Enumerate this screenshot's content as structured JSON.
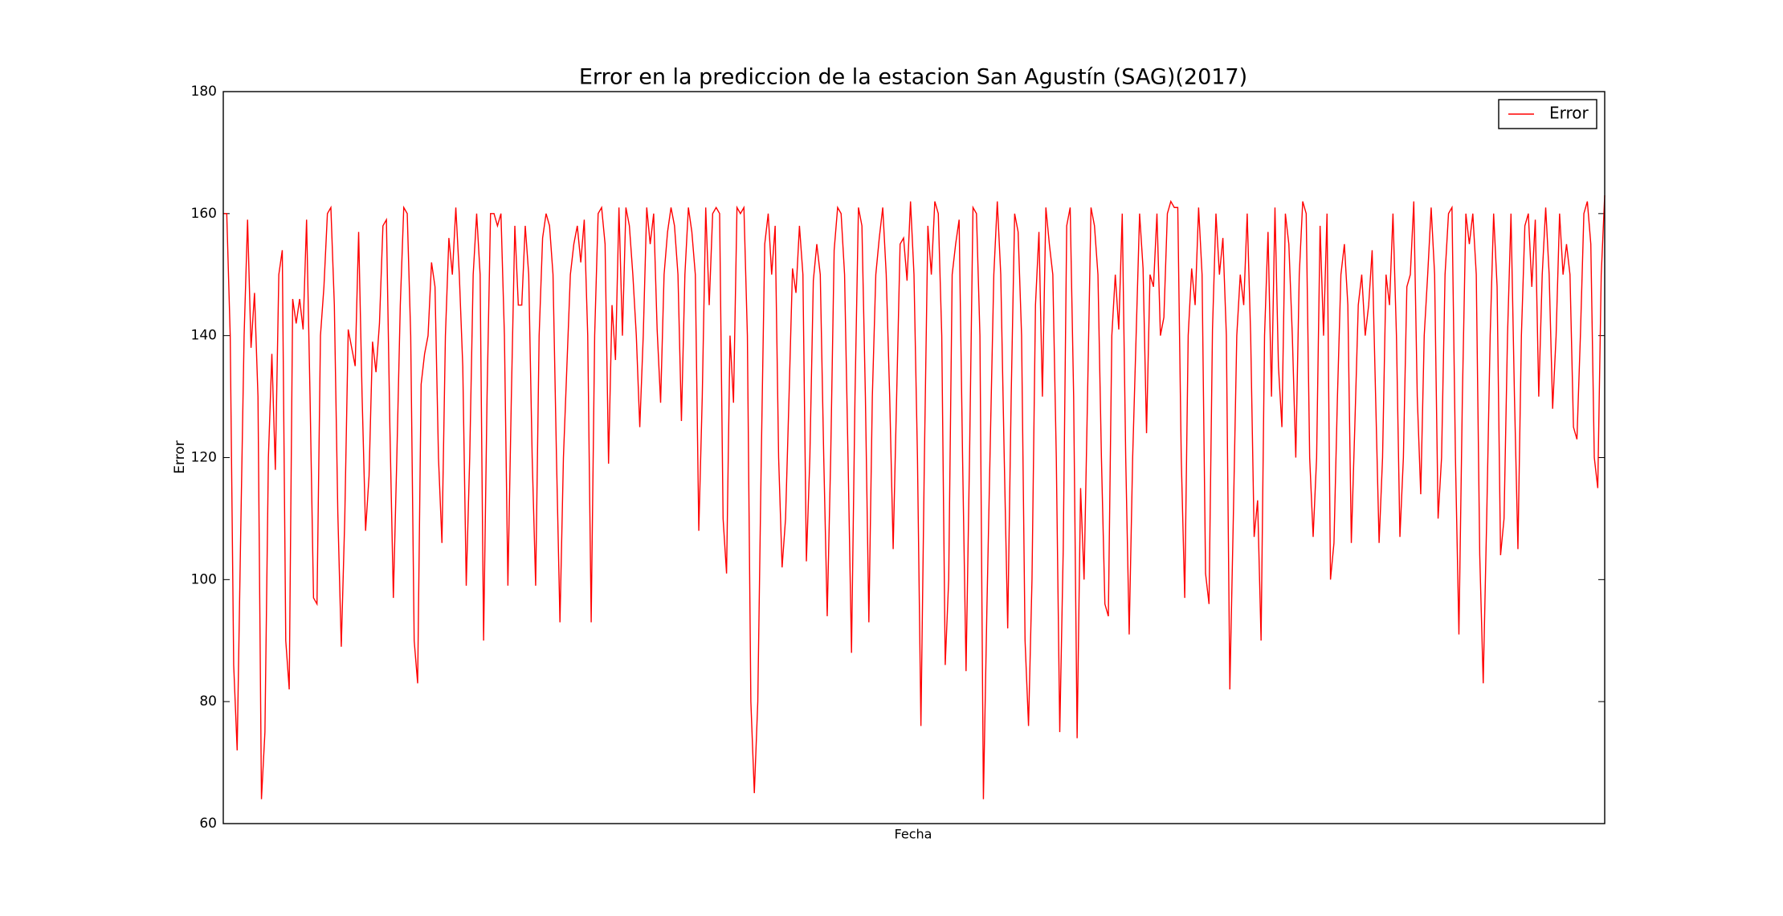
{
  "chart_data": {
    "type": "line",
    "title": "Error en la prediccion de la estacion San Agustín (SAG)(2017)",
    "x_label": "Fecha",
    "y_label": "Error",
    "ylim": [
      60,
      180
    ],
    "yticks": [
      60,
      80,
      100,
      120,
      140,
      160,
      180
    ],
    "legend": "upper right",
    "series": [
      {
        "name": "Error",
        "color": "#ff0000",
        "values": [
          160,
          160,
          140,
          86,
          72,
          107,
          140,
          159,
          138,
          147,
          130,
          64,
          75,
          120,
          137,
          118,
          150,
          154,
          90,
          82,
          146,
          142,
          146,
          141,
          159,
          130,
          97,
          96,
          140,
          148,
          160,
          161,
          145,
          111,
          89,
          110,
          141,
          138,
          135,
          157,
          130,
          108,
          117,
          139,
          134,
          142,
          158,
          159,
          125,
          97,
          120,
          145,
          161,
          160,
          140,
          90,
          83,
          132,
          137,
          140,
          152,
          148,
          120,
          106,
          140,
          156,
          150,
          161,
          150,
          135,
          99,
          120,
          150,
          160,
          150,
          90,
          130,
          160,
          160,
          158,
          160,
          140,
          99,
          130,
          158,
          145,
          145,
          158,
          150,
          120,
          99,
          140,
          156,
          160,
          158,
          150,
          120,
          93,
          120,
          135,
          150,
          155,
          158,
          152,
          159,
          140,
          93,
          140,
          160,
          161,
          155,
          119,
          145,
          136,
          161,
          140,
          161,
          158,
          150,
          140,
          125,
          140,
          161,
          155,
          160,
          141,
          129,
          150,
          157,
          161,
          158,
          150,
          126,
          150,
          161,
          157,
          150,
          108,
          130,
          161,
          145,
          160,
          161,
          160,
          110,
          101,
          140,
          129,
          161,
          160,
          161,
          140,
          80,
          65,
          80,
          120,
          155,
          160,
          150,
          158,
          120,
          102,
          110,
          130,
          151,
          147,
          158,
          150,
          103,
          120,
          149,
          155,
          150,
          120,
          94,
          120,
          154,
          161,
          160,
          150,
          120,
          88,
          130,
          161,
          158,
          130,
          93,
          130,
          150,
          156,
          161,
          150,
          130,
          105,
          130,
          155,
          156,
          149,
          162,
          150,
          120,
          76,
          120,
          158,
          150,
          162,
          160,
          140,
          86,
          100,
          150,
          155,
          159,
          120,
          85,
          120,
          161,
          160,
          140,
          64,
          95,
          123,
          150,
          162,
          150,
          120,
          92,
          130,
          160,
          157,
          140,
          90,
          76,
          100,
          145,
          157,
          130,
          161,
          155,
          150,
          120,
          75,
          105,
          158,
          161,
          130,
          74,
          115,
          100,
          130,
          161,
          158,
          150,
          120,
          96,
          94,
          140,
          150,
          141,
          160,
          120,
          91,
          120,
          140,
          160,
          151,
          124,
          150,
          148,
          160,
          140,
          143,
          160,
          162,
          161,
          161,
          120,
          97,
          140,
          151,
          145,
          161,
          150,
          101,
          96,
          141,
          160,
          150,
          156,
          140,
          82,
          110,
          140,
          150,
          145,
          160,
          140,
          107,
          113,
          90,
          140,
          157,
          130,
          161,
          135,
          125,
          160,
          155,
          140,
          120,
          150,
          162,
          160,
          120,
          107,
          120,
          158,
          140,
          160,
          100,
          106,
          130,
          150,
          155,
          145,
          106,
          125,
          145,
          150,
          140,
          145,
          154,
          130,
          106,
          120,
          150,
          145,
          160,
          140,
          107,
          120,
          148,
          150,
          162,
          130,
          114,
          140,
          150,
          161,
          150,
          110,
          120,
          150,
          160,
          161,
          120,
          91,
          130,
          160,
          155,
          160,
          150,
          104,
          83,
          110,
          140,
          160,
          148,
          104,
          110,
          140,
          160,
          130,
          105,
          140,
          158,
          160,
          148,
          159,
          130,
          150,
          161,
          150,
          128,
          140,
          160,
          150,
          155,
          150,
          125,
          123,
          140,
          160,
          162,
          155,
          120,
          115,
          150,
          163
        ]
      }
    ]
  }
}
